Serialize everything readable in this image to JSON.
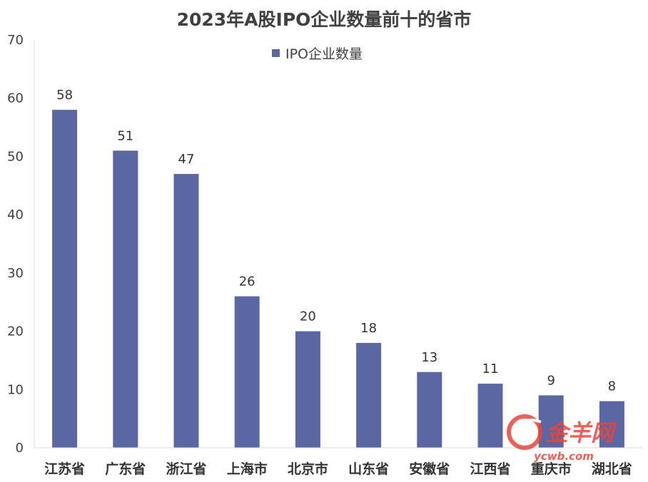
{
  "chart_data": {
    "type": "bar",
    "title": "2023年A股IPO企业数量前十的省市",
    "xlabel": "",
    "ylabel": "",
    "categories": [
      "江苏省",
      "广东省",
      "浙江省",
      "上海市",
      "北京市",
      "山东省",
      "安徽省",
      "江西省",
      "重庆市",
      "湖北省"
    ],
    "series": [
      {
        "name": "IPO企业数量",
        "values": [
          58,
          51,
          47,
          26,
          20,
          18,
          13,
          11,
          9,
          8
        ]
      }
    ],
    "ylim": [
      0,
      70
    ],
    "yticks": [
      0,
      10,
      20,
      30,
      40,
      50,
      60,
      70
    ],
    "grid": false,
    "legend": "top-center",
    "data_labels": true
  },
  "colors": {
    "bar": "#5b67a3",
    "axis": "#d9d9d9",
    "watermark": "#e8453c"
  },
  "watermark": {
    "logo_text": "金羊网",
    "url": "ycwb.com",
    "icon": "ycwb-logo-icon"
  }
}
